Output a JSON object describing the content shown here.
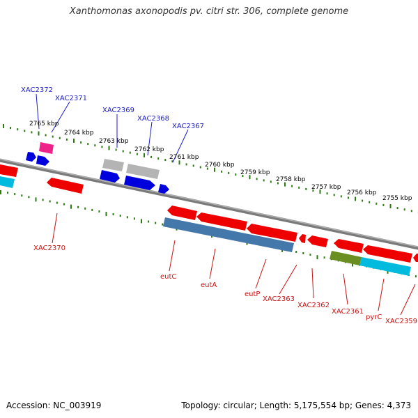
{
  "title": "Xanthomonas axonopodis pv. citri str. 306, complete genome",
  "footer": {
    "accession": "Accession: NC_003919",
    "topology": "Topology: circular; Length: 5,175,554 bp; Genes: 4,373"
  },
  "scale_labels": [
    "2765 kbp",
    "2764 kbp",
    "2763 kbp",
    "2762 kbp",
    "2761 kbp",
    "2760 kbp",
    "2759 kbp",
    "2758 kbp",
    "2757 kbp",
    "2756 kbp",
    "2755 kbp"
  ],
  "forward_gene_labels": [
    "XAC2372",
    "XAC2371",
    "XAC2369",
    "XAC2368",
    "XAC2367"
  ],
  "reverse_gene_labels": [
    "XAC2370",
    "eutC",
    "eutA",
    "eutP",
    "XAC2363",
    "XAC2362",
    "XAC2361",
    "pyrC",
    "XAC2359"
  ],
  "colors": {
    "backbone": "#888888",
    "forward_gene": "#0000ee",
    "pseudo_gene": "#bbbbbb",
    "trna_gene": "#ee2288",
    "reverse_gene": "#ee0000",
    "cyan_feature": "#00bbdd",
    "steelblue_feature": "#4477aa",
    "olive_feature": "#6b8e23",
    "tick": "#2a7a10"
  }
}
